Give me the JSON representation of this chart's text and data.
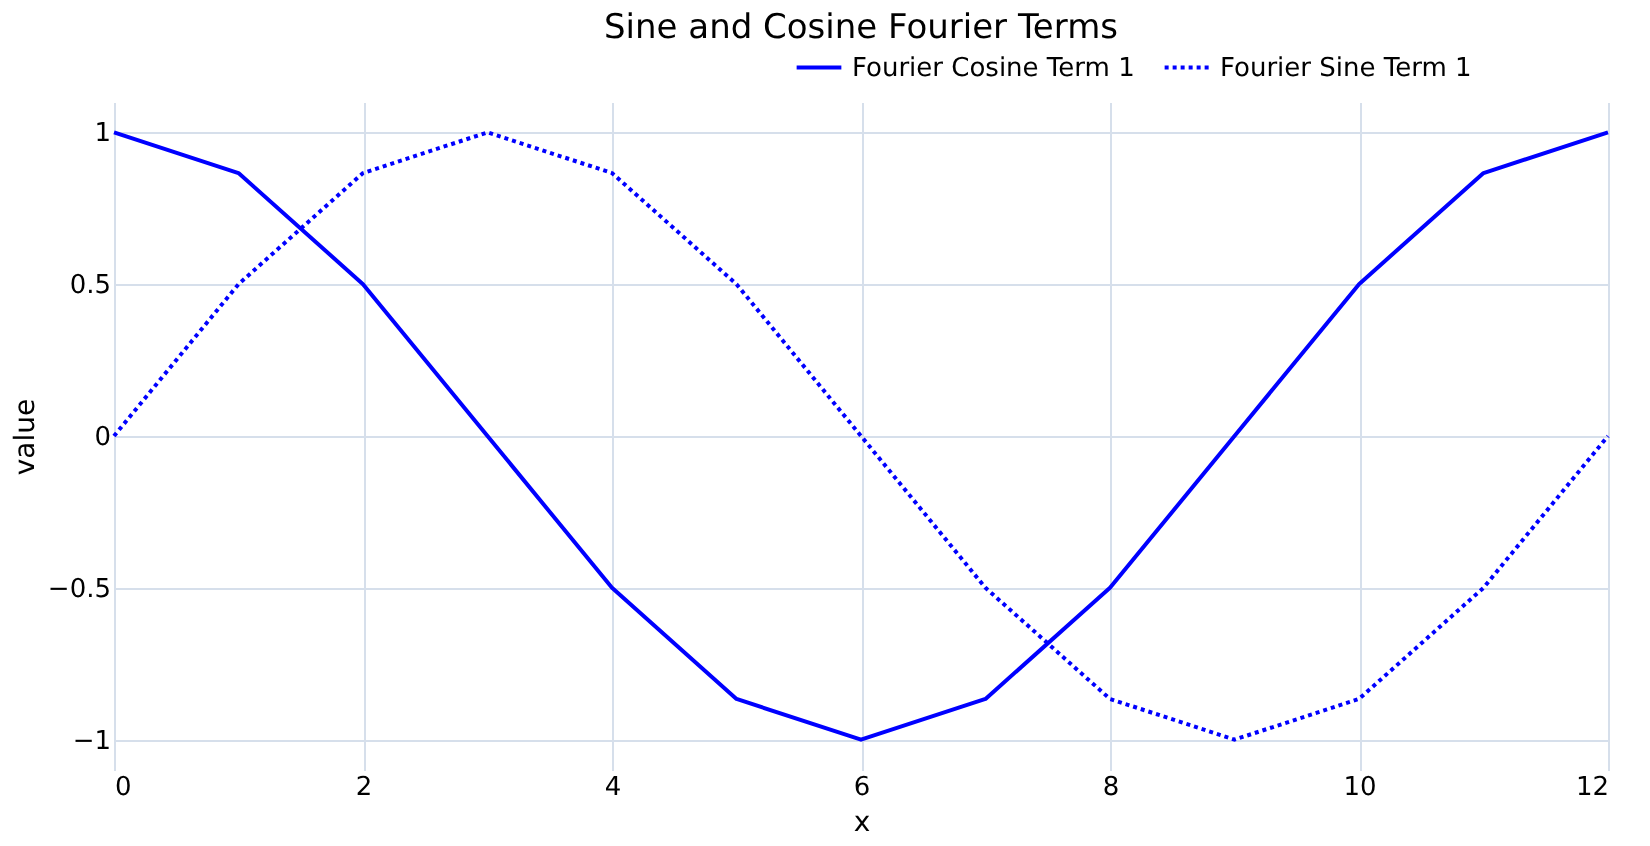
{
  "chart_data": {
    "type": "line",
    "title": "Sine and Cosine Fourier Terms",
    "xlabel": "x",
    "ylabel": "value",
    "x": [
      0,
      1,
      2,
      3,
      4,
      5,
      6,
      7,
      8,
      9,
      10,
      11,
      12
    ],
    "series": [
      {
        "name": "Fourier Cosine Term 1",
        "color": "#0000ff",
        "line_style": "solid",
        "values": [
          1,
          0.866,
          0.5,
          0,
          -0.5,
          -0.866,
          -1,
          -0.866,
          -0.5,
          0,
          0.5,
          0.866,
          1
        ]
      },
      {
        "name": "Fourier Sine Term 1",
        "color": "#0000ff",
        "line_style": "dotted",
        "values": [
          0,
          0.5,
          0.866,
          1,
          0.866,
          0.5,
          0,
          -0.5,
          -0.866,
          -1,
          -0.866,
          -0.5,
          0
        ]
      }
    ],
    "xlim": [
      0,
      12
    ],
    "xticks": [
      0,
      2,
      4,
      6,
      8,
      10,
      12
    ],
    "ylim": [
      -1.1,
      1.1
    ],
    "yticks": [
      {
        "value": -1,
        "label": "−1"
      },
      {
        "value": -0.5,
        "label": "−0.5"
      },
      0,
      0.5,
      1
    ],
    "grid": true,
    "legend": "top right",
    "marker": "none"
  }
}
